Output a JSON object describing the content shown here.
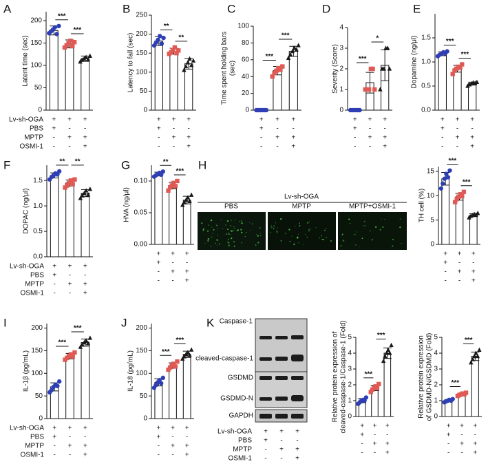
{
  "conditions": {
    "rows": [
      {
        "label": "Lv-sh-OGA",
        "signs": [
          "+",
          "+",
          "+"
        ]
      },
      {
        "label": "PBS",
        "signs": [
          "+",
          "-",
          "-"
        ]
      },
      {
        "label": "MPTP",
        "signs": [
          "-",
          "+",
          "+"
        ]
      },
      {
        "label": "OSMI-1",
        "signs": [
          "-",
          "-",
          "+"
        ]
      }
    ]
  },
  "micrograph": {
    "panel": "H",
    "group": "Lv-sh-OGA",
    "labels": [
      "PBS",
      "MPTP",
      "MPTP+OSMI-1"
    ]
  },
  "blot": {
    "panel": "K",
    "bands": [
      "Caspase-1",
      "cleaved-caspase-1",
      "GSDMD",
      "GSDMD-N",
      "GAPDH"
    ]
  },
  "chart_data": [
    {
      "type": "bar",
      "panel": "A",
      "ylabel": "Latent time (sec)",
      "ylim": [
        0,
        220
      ],
      "yticks": [
        0,
        50,
        100,
        150,
        200
      ],
      "values": [
        178,
        148,
        115
      ],
      "errors": [
        10,
        9,
        6
      ],
      "points": [
        [
          172,
          176,
          180,
          185,
          170,
          188
        ],
        [
          140,
          145,
          150,
          155,
          143,
          152
        ],
        [
          108,
          112,
          115,
          118,
          113,
          121
        ]
      ],
      "significance": [
        "***",
        "***"
      ],
      "colors": [
        "#2e3fb5",
        "#e05a55",
        "#1a1a1a"
      ],
      "markers": [
        "circle",
        "square",
        "triangle"
      ]
    },
    {
      "type": "bar",
      "panel": "B",
      "ylabel": "Latency to fall (sec)",
      "ylim": [
        0,
        250
      ],
      "yticks": [
        0,
        50,
        100,
        150,
        200,
        250
      ],
      "values": [
        182,
        155,
        122
      ],
      "errors": [
        12,
        8,
        14
      ],
      "points": [
        [
          170,
          178,
          185,
          195,
          175,
          190
        ],
        [
          148,
          152,
          158,
          165,
          150,
          157
        ],
        [
          105,
          115,
          125,
          135,
          118,
          130
        ]
      ],
      "significance": [
        "**",
        "**"
      ],
      "colors": [
        "#2e3fb5",
        "#e05a55",
        "#1a1a1a"
      ],
      "markers": [
        "circle",
        "square",
        "triangle"
      ]
    },
    {
      "type": "bar",
      "panel": "C",
      "ylabel": [
        "Time spent holding bars",
        "(sec)"
      ],
      "ylim": [
        0,
        100
      ],
      "yticks": [
        0,
        20,
        40,
        60,
        80,
        100
      ],
      "values": [
        0,
        47,
        70
      ],
      "errors": [
        0,
        5,
        6
      ],
      "points": [
        [
          0,
          0,
          0,
          0,
          0,
          0
        ],
        [
          40,
          44,
          47,
          50,
          48,
          52
        ],
        [
          62,
          66,
          70,
          74,
          72,
          77
        ]
      ],
      "significance": [
        "***",
        "***"
      ],
      "colors": [
        "#2e3fb5",
        "#e05a55",
        "#1a1a1a"
      ],
      "markers": [
        "circle",
        "square",
        "triangle"
      ]
    },
    {
      "type": "bar",
      "panel": "D",
      "ylabel": "Severity (Score)",
      "ylim": [
        0,
        4
      ],
      "yticks": [
        0,
        1,
        2,
        3,
        4
      ],
      "values": [
        0,
        1.33,
        2.17
      ],
      "errors": [
        0,
        0.5,
        0.75
      ],
      "points": [
        [
          0,
          0,
          0,
          0,
          0,
          0
        ],
        [
          1,
          1,
          1,
          2,
          2,
          1
        ],
        [
          1,
          2,
          2,
          3,
          3,
          2
        ]
      ],
      "significance": [
        "***",
        "*"
      ],
      "colors": [
        "#2e3fb5",
        "#e05a55",
        "#1a1a1a"
      ],
      "markers": [
        "circle",
        "square",
        "triangle"
      ]
    },
    {
      "type": "bar",
      "panel": "E",
      "ylabel": "Dopamine (ng/μl)",
      "ylim": [
        0,
        2
      ],
      "yticks": [
        {
          "value": 0,
          "label": "0.0"
        },
        {
          "value": 0.5,
          "label": "0.5"
        },
        {
          "value": 1,
          "label": "1.0"
        },
        {
          "value": 1.5,
          "label": "1.5"
        }
      ],
      "values": [
        1.17,
        0.86,
        0.55
      ],
      "errors": [
        0.04,
        0.07,
        0.03
      ],
      "points": [
        [
          1.12,
          1.15,
          1.17,
          1.2,
          1.18,
          1.22
        ],
        [
          0.75,
          0.82,
          0.86,
          0.9,
          0.88,
          0.95
        ],
        [
          0.5,
          0.53,
          0.55,
          0.57,
          0.56,
          0.58
        ]
      ],
      "significance": [
        "***",
        "***"
      ],
      "colors": [
        "#2e3fb5",
        "#e05a55",
        "#1a1a1a"
      ],
      "markers": [
        "circle",
        "square",
        "triangle"
      ]
    },
    {
      "type": "bar",
      "panel": "F",
      "ylabel": "DOPAC (ng/μl)",
      "ylim": [
        0,
        1.8
      ],
      "yticks": [
        {
          "value": 0,
          "label": "0.0"
        },
        {
          "value": 0.5,
          "label": "0.5"
        },
        {
          "value": 1,
          "label": "1.0"
        },
        {
          "value": 1.5,
          "label": "1.5"
        }
      ],
      "values": [
        1.6,
        1.45,
        1.25
      ],
      "errors": [
        0.05,
        0.06,
        0.07
      ],
      "points": [
        [
          1.52,
          1.57,
          1.6,
          1.64,
          1.62,
          1.68
        ],
        [
          1.36,
          1.4,
          1.45,
          1.5,
          1.43,
          1.52
        ],
        [
          1.15,
          1.2,
          1.25,
          1.3,
          1.22,
          1.33
        ]
      ],
      "significance": [
        "**",
        "**"
      ],
      "colors": [
        "#2e3fb5",
        "#e05a55",
        "#1a1a1a"
      ],
      "markers": [
        "circle",
        "square",
        "triangle"
      ]
    },
    {
      "type": "bar",
      "panel": "G",
      "ylabel": "HVA (ng/μl)",
      "ylim": [
        0,
        0.125
      ],
      "yticks": [
        {
          "value": 0,
          "label": "0.00"
        },
        {
          "value": 0.05,
          "label": "0.05"
        },
        {
          "value": 0.1,
          "label": "0.10"
        }
      ],
      "values": [
        0.111,
        0.093,
        0.07
      ],
      "errors": [
        0.003,
        0.005,
        0.006
      ],
      "points": [
        [
          0.107,
          0.109,
          0.111,
          0.113,
          0.11,
          0.115
        ],
        [
          0.085,
          0.09,
          0.093,
          0.097,
          0.092,
          0.1
        ],
        [
          0.062,
          0.066,
          0.07,
          0.074,
          0.068,
          0.078
        ]
      ],
      "significance": [
        "**",
        "***"
      ],
      "colors": [
        "#2e3fb5",
        "#e05a55",
        "#1a1a1a"
      ],
      "markers": [
        "circle",
        "square",
        "triangle"
      ]
    },
    {
      "type": "bar",
      "ylabel": "TH cell (%)",
      "ylim": [
        0,
        16
      ],
      "yticks": [
        0,
        5,
        10,
        15
      ],
      "values": [
        13.5,
        9.8,
        6.0
      ],
      "errors": [
        1.3,
        0.7,
        0.3
      ],
      "points": [
        [
          11.5,
          12.5,
          13.5,
          14.5,
          13.8,
          15.2
        ],
        [
          8.7,
          9.3,
          9.8,
          10.3,
          9.9,
          10.8
        ],
        [
          5.5,
          5.8,
          6.0,
          6.2,
          6.1,
          6.4
        ]
      ],
      "significance": [
        "***",
        "***"
      ],
      "colors": [
        "#2e3fb5",
        "#e05a55",
        "#1a1a1a"
      ],
      "markers": [
        "circle",
        "square",
        "triangle"
      ]
    },
    {
      "type": "bar",
      "panel": "I",
      "ylabel": "IL-1β (pg/mL)",
      "ylim": [
        0,
        210
      ],
      "yticks": [
        0,
        50,
        100,
        150,
        200
      ],
      "values": [
        70,
        138,
        168
      ],
      "errors": [
        9,
        6,
        8
      ],
      "points": [
        [
          58,
          63,
          70,
          75,
          72,
          82
        ],
        [
          130,
          134,
          138,
          142,
          137,
          146
        ],
        [
          158,
          163,
          168,
          172,
          166,
          178
        ]
      ],
      "significance": [
        "***",
        "***"
      ],
      "colors": [
        "#2e3fb5",
        "#e05a55",
        "#1a1a1a"
      ],
      "markers": [
        "circle",
        "square",
        "triangle"
      ]
    },
    {
      "type": "bar",
      "panel": "J",
      "ylabel": "IL-18 (pg/mL)",
      "ylim": [
        0,
        210
      ],
      "yticks": [
        0,
        50,
        100,
        150,
        200
      ],
      "values": [
        80,
        117,
        142
      ],
      "errors": [
        8,
        6,
        7
      ],
      "points": [
        [
          68,
          74,
          80,
          85,
          78,
          90
        ],
        [
          108,
          113,
          117,
          121,
          115,
          126
        ],
        [
          132,
          137,
          142,
          146,
          140,
          152
        ]
      ],
      "significance": [
        "***",
        "***"
      ],
      "colors": [
        "#2e3fb5",
        "#e05a55",
        "#1a1a1a"
      ],
      "markers": [
        "circle",
        "square",
        "triangle"
      ]
    },
    {
      "type": "bar",
      "ylabel": [
        "Relative protein expression of",
        "cleaved-caspase-1/Caspase-1 (Fold)"
      ],
      "ylim": [
        0,
        5
      ],
      "yticks": [
        0,
        1,
        2,
        3,
        4,
        5
      ],
      "values": [
        1.0,
        1.8,
        4.0
      ],
      "errors": [
        0.13,
        0.17,
        0.33
      ],
      "points": [
        [
          0.8,
          0.9,
          1.0,
          1.05,
          1.0,
          1.2
        ],
        [
          1.55,
          1.7,
          1.8,
          1.9,
          1.8,
          2.05
        ],
        [
          3.5,
          3.8,
          4.0,
          4.2,
          4.0,
          4.5
        ]
      ],
      "significance": [
        "***",
        "***"
      ],
      "colors": [
        "#2e3fb5",
        "#e05a55",
        "#1a1a1a"
      ],
      "markers": [
        "circle",
        "square",
        "triangle"
      ]
    },
    {
      "type": "bar",
      "ylabel": [
        "Relative protein expression",
        "of GSDMD-N/GSDMD (Fold)"
      ],
      "ylim": [
        0,
        5
      ],
      "yticks": [
        0,
        1,
        2,
        3,
        4,
        5
      ],
      "values": [
        1.0,
        1.4,
        3.8
      ],
      "errors": [
        0.07,
        0.07,
        0.27
      ],
      "points": [
        [
          0.9,
          0.95,
          1.0,
          1.05,
          1.0,
          1.1
        ],
        [
          1.3,
          1.35,
          1.4,
          1.45,
          1.4,
          1.5
        ],
        [
          3.4,
          3.6,
          3.8,
          4.0,
          3.8,
          4.2
        ]
      ],
      "significance": [
        "***",
        "***"
      ],
      "colors": [
        "#2e3fb5",
        "#e05a55",
        "#1a1a1a"
      ],
      "markers": [
        "circle",
        "square",
        "triangle"
      ]
    }
  ]
}
